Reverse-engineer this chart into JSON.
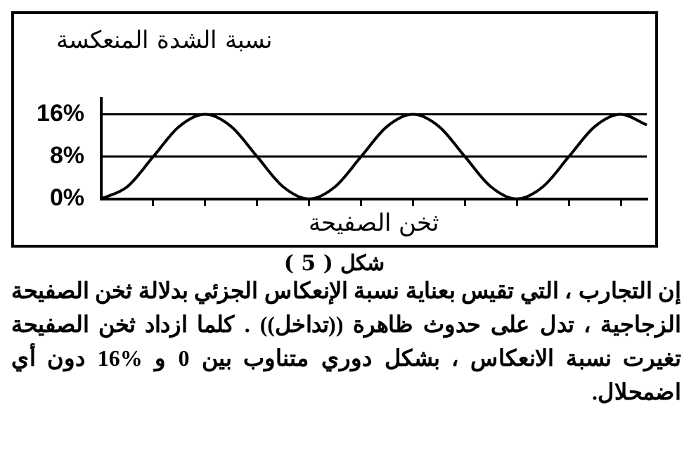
{
  "chart_data": {
    "type": "line",
    "ylabel": "نسبة الشدة المنعكسة",
    "xlabel": "ثخن الصفيحة",
    "categories": [
      null,
      null,
      null,
      null,
      null,
      null,
      null,
      null,
      null,
      null,
      null,
      null,
      null,
      null,
      null,
      null,
      null,
      null,
      null,
      null,
      null,
      null
    ],
    "series": [
      {
        "color": "#000000",
        "values": [
          0,
          2.3,
          8,
          13.7,
          16,
          13.7,
          8,
          2.3,
          0,
          2.3,
          8,
          13.7,
          16,
          13.7,
          8,
          2.3,
          0,
          2.3,
          8,
          13.7,
          16,
          14
        ]
      }
    ],
    "ylim": [
      0,
      19
    ],
    "yticks": [
      {
        "value": 0,
        "label": "0%"
      },
      {
        "value": 8,
        "label": "8%"
      },
      {
        "value": 16,
        "label": "16%"
      }
    ],
    "grid": "y",
    "marker": "none",
    "line_style": "solid",
    "legend": false,
    "annotations": [
      "شكل ( 5 )",
      "إن التجارب ، التي تقيس بعناية نسبة الإنعكاس الجزئي بدلالة ثخن الصفيحة الزجاجية ، تدل على حدوث ظاهرة ((تداخل)) . كلما ازداد ثخن الصفيحة تغيرت نسبة الانعكاس ، بشكل دوري متناوب بين 0 و %16 دون أي اضمحلال."
    ]
  }
}
